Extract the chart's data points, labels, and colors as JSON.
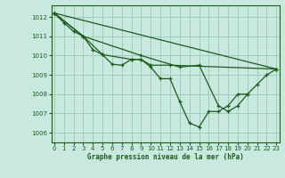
{
  "title": "Graphe pression niveau de la mer (hPa)",
  "bg_color": "#c8e8e0",
  "grid_color": "#a0ccbb",
  "line_color": "#1a5c1a",
  "xlim": [
    -0.3,
    23.3
  ],
  "ylim": [
    1005.5,
    1012.6
  ],
  "xticks": [
    0,
    1,
    2,
    3,
    4,
    5,
    6,
    7,
    8,
    9,
    10,
    11,
    12,
    13,
    14,
    15,
    16,
    17,
    18,
    19,
    20,
    21,
    22,
    23
  ],
  "yticks": [
    1006,
    1007,
    1008,
    1009,
    1010,
    1011,
    1012
  ],
  "line1_x": [
    0,
    1,
    2,
    3,
    4,
    5,
    6,
    7,
    8,
    9,
    10,
    11,
    12,
    13,
    14,
    15,
    16,
    17,
    18,
    19,
    20
  ],
  "line1_y": [
    1012.2,
    1011.7,
    1011.25,
    1011.0,
    1010.3,
    1010.05,
    1009.55,
    1009.5,
    1009.8,
    1009.8,
    1009.4,
    1008.8,
    1008.8,
    1007.6,
    1006.5,
    1006.3,
    1007.1,
    1007.1,
    1007.4,
    1008.0,
    1008.0
  ],
  "line2_x": [
    0,
    23
  ],
  "line2_y": [
    1012.2,
    1009.3
  ],
  "line3_x": [
    0,
    3,
    9,
    13,
    15,
    17,
    18,
    19,
    20,
    21,
    22,
    23
  ],
  "line3_y": [
    1012.2,
    1011.0,
    1010.0,
    1009.4,
    1009.5,
    1007.4,
    1007.1,
    1007.4,
    1008.0,
    1008.5,
    1009.0,
    1009.3
  ],
  "line4_x": [
    0,
    3,
    5,
    8,
    9,
    10,
    12,
    23
  ],
  "line4_y": [
    1012.2,
    1011.0,
    1010.05,
    1009.8,
    1009.8,
    1009.5,
    1009.5,
    1009.3
  ]
}
